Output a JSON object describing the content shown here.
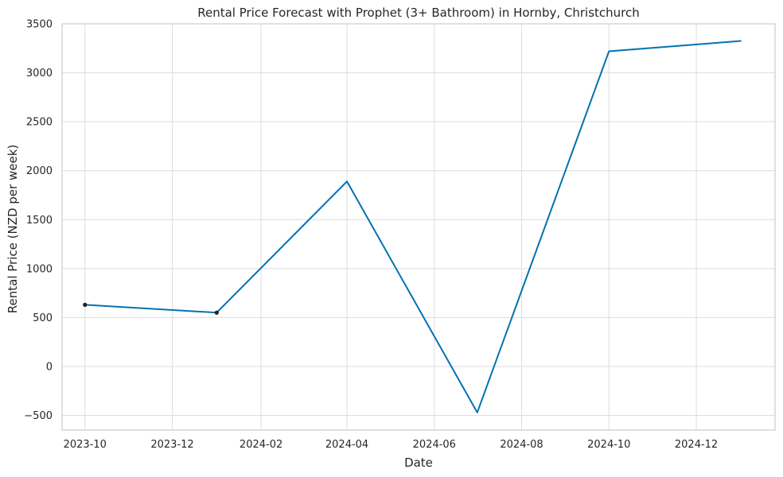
{
  "chart_data": {
    "type": "line",
    "title": "Rental Price Forecast with Prophet (3+ Bathroom) in Hornby, Christchurch",
    "xlabel": "Date",
    "ylabel": "Rental Price (NZD per week)",
    "xlim": [
      "2023-09-15",
      "2025-01-25"
    ],
    "ylim": [
      -650,
      3500
    ],
    "x_ticks": [
      "2023-10",
      "2023-12",
      "2024-02",
      "2024-04",
      "2024-06",
      "2024-08",
      "2024-10",
      "2024-12"
    ],
    "y_ticks": [
      "−500",
      "0",
      "500",
      "1000",
      "1500",
      "2000",
      "2500",
      "3000",
      "3500"
    ],
    "grid": true,
    "series": [
      {
        "color": "#0072b2",
        "x": [
          "2023-10-01",
          "2024-01-01",
          "2024-04-01",
          "2024-07-01",
          "2024-10-01",
          "2025-01-01"
        ],
        "y": [
          630,
          550,
          1890,
          -470,
          3220,
          3325
        ]
      }
    ],
    "observed_points": {
      "color": "#222222",
      "x": [
        "2023-10-01",
        "2024-01-01"
      ],
      "y": [
        630,
        550
      ]
    }
  }
}
